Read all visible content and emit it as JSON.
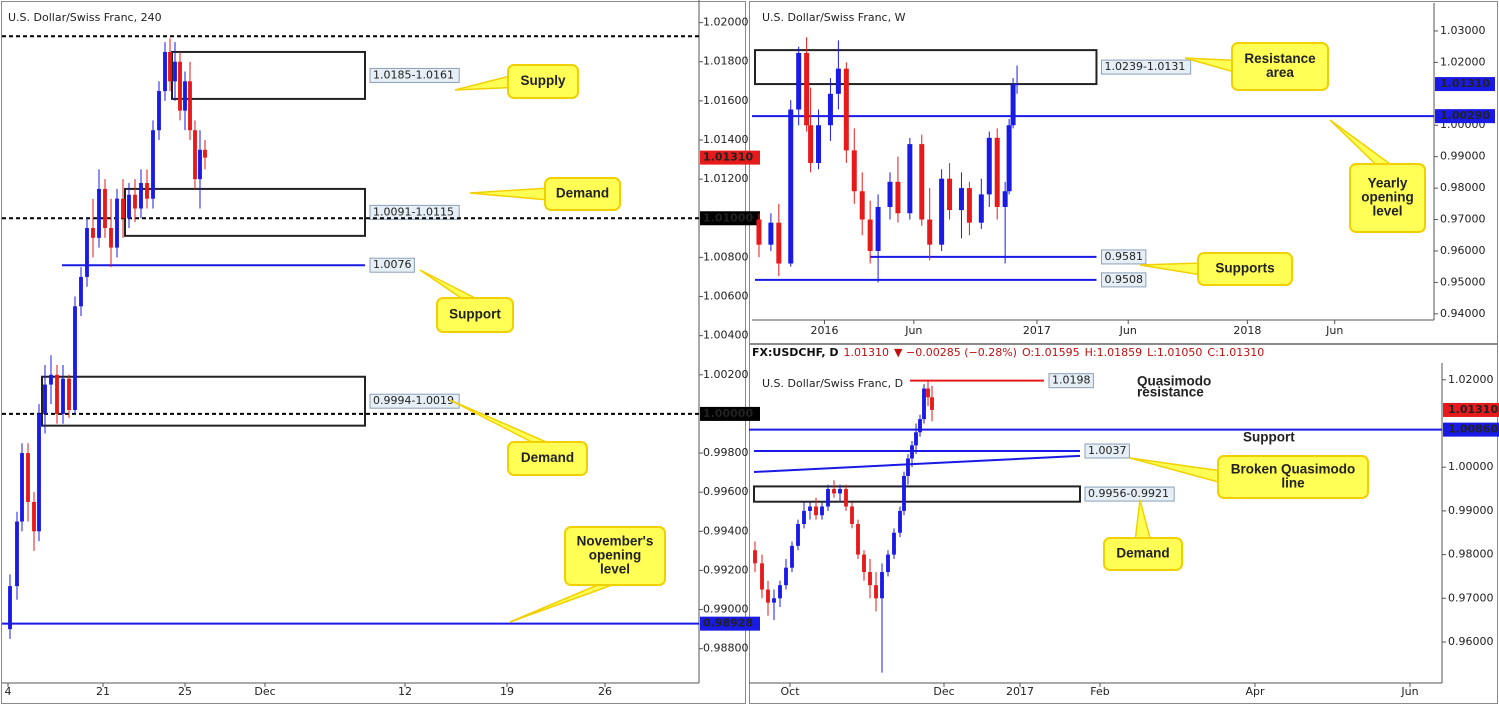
{
  "chart_data": [
    {
      "type": "candlestick",
      "title": "U.S. Dollar/Swiss Franc, 240",
      "x": [
        5,
        12,
        17,
        23,
        29,
        34,
        40,
        46,
        52,
        58,
        64,
        70,
        76,
        82,
        88,
        94,
        100,
        106,
        112,
        118,
        124,
        130,
        136,
        142,
        148,
        154,
        160,
        165,
        170,
        175,
        180,
        185,
        190,
        195,
        200
      ],
      "open": [
        0.989,
        0.9912,
        0.9945,
        0.998,
        0.9955,
        0.994,
        1.0,
        1.0015,
        1.002,
        1.0,
        1.0018,
        1.0002,
        1.0055,
        1.007,
        1.0095,
        1.009,
        1.0115,
        1.0095,
        1.0085,
        1.011,
        1.01,
        1.0112,
        1.0105,
        1.0118,
        1.011,
        1.0145,
        1.0165,
        1.0185,
        1.017,
        1.018,
        1.0155,
        1.017,
        1.0145,
        1.012,
        1.0135
      ],
      "high": [
        0.9918,
        0.995,
        0.9985,
        0.9985,
        0.996,
        1.0005,
        1.0025,
        1.003,
        1.0025,
        1.0025,
        1.002,
        1.006,
        1.0075,
        1.01,
        1.011,
        1.0125,
        1.012,
        1.011,
        1.0115,
        1.012,
        1.0118,
        1.012,
        1.0125,
        1.0125,
        1.015,
        1.017,
        1.019,
        1.0192,
        1.019,
        1.0185,
        1.0175,
        1.018,
        1.015,
        1.0145,
        1.014
      ],
      "low": [
        0.9885,
        0.9905,
        0.994,
        0.9945,
        0.993,
        0.9935,
        0.999,
        1.0005,
        0.9995,
        0.9995,
        0.9998,
        1.0,
        1.005,
        1.0065,
        1.008,
        1.0085,
        1.009,
        1.0075,
        1.008,
        1.009,
        1.0095,
        1.0098,
        1.01,
        1.0105,
        1.0105,
        1.014,
        1.016,
        1.0165,
        1.016,
        1.015,
        1.0145,
        1.014,
        1.0115,
        1.0105,
        1.0125
      ],
      "close": [
        0.9912,
        0.9945,
        0.998,
        0.9955,
        0.994,
        1.0,
        1.0015,
        1.002,
        1.0,
        1.0018,
        1.0002,
        1.0055,
        1.007,
        1.0095,
        1.009,
        1.0115,
        1.0095,
        1.0085,
        1.011,
        1.01,
        1.0112,
        1.0105,
        1.0118,
        1.011,
        1.0145,
        1.0165,
        1.0185,
        1.017,
        1.018,
        1.0155,
        1.017,
        1.0145,
        1.012,
        1.0135,
        1.0131
      ],
      "up_color": "#1a1ae6",
      "down_color": "#e61a1a",
      "xlim": [
        0,
        692
      ],
      "xticks": [
        {
          "value": 3,
          "label": "4"
        },
        {
          "value": 98,
          "label": "21"
        },
        {
          "value": 180,
          "label": "25"
        },
        {
          "value": 260,
          "label": "Dec"
        },
        {
          "value": 400,
          "label": "12"
        },
        {
          "value": 502,
          "label": "19"
        },
        {
          "value": 600,
          "label": "26"
        }
      ],
      "ylim": [
        0.9864,
        1.0209
      ],
      "yticks": [
        {
          "value": 1.02,
          "label": "1.02000"
        },
        {
          "value": 1.018,
          "label": "1.01800"
        },
        {
          "value": 1.016,
          "label": "1.01600"
        },
        {
          "value": 1.014,
          "label": "1.01400"
        },
        {
          "value": 1.012,
          "label": "1.01200"
        },
        {
          "value": 1.008,
          "label": "1.00800"
        },
        {
          "value": 1.006,
          "label": "1.00600"
        },
        {
          "value": 1.004,
          "label": "1.00400"
        },
        {
          "value": 1.002,
          "label": "1.00200"
        },
        {
          "value": 0.998,
          "label": "0.99800"
        },
        {
          "value": 0.996,
          "label": "0.99600"
        },
        {
          "value": 0.994,
          "label": "0.99400"
        },
        {
          "value": 0.992,
          "label": "0.99200"
        },
        {
          "value": 0.99,
          "label": "0.99000"
        },
        {
          "value": 0.988,
          "label": "0.98800"
        }
      ],
      "zones": [
        {
          "label": "1.0185-1.0161",
          "top": 1.0185,
          "bottom": 1.0161,
          "start": 167,
          "end": 360
        },
        {
          "label": "1.0091-1.0115",
          "top": 1.0115,
          "bottom": 1.0091,
          "start": 120,
          "end": 360
        },
        {
          "label": "0.9994-1.0019",
          "top": 1.0019,
          "bottom": 0.9994,
          "start": 37,
          "end": 360
        }
      ],
      "levels": [
        {
          "value": 1.0193,
          "color": "#000000",
          "style": "dashed"
        },
        {
          "value": 1.01,
          "color": "#000000",
          "style": "dashed"
        },
        {
          "value": 1.0,
          "color": "#000000",
          "style": "dashed"
        },
        {
          "value": 1.0076,
          "label": "1.0076",
          "color": "#1a1ae6",
          "style": "solid",
          "start": 57,
          "end": 360
        },
        {
          "value": 0.98928,
          "color": "#1a1ae6",
          "style": "solid"
        }
      ],
      "badges": [
        {
          "value": 1.0131,
          "label": "1.01310",
          "color": "#e61a1a"
        },
        {
          "value": 1.01,
          "label": "1.01000",
          "color": "#000000"
        },
        {
          "value": 1.0,
          "label": "1.00000",
          "color": "#000000"
        },
        {
          "value": 0.98928,
          "label": "0.98928",
          "color": "#1a1ae6"
        }
      ],
      "annotations": [
        {
          "lines": [
            "Supply"
          ]
        },
        {
          "lines": [
            "Demand"
          ]
        },
        {
          "lines": [
            "Support"
          ]
        },
        {
          "lines": [
            "Demand"
          ]
        },
        {
          "lines": [
            "November's",
            "opening",
            "level"
          ]
        }
      ]
    },
    {
      "type": "candlestick",
      "title": "U.S. Dollar/Swiss Franc, W",
      "x": [
        1,
        4,
        6,
        9,
        11,
        13,
        14,
        16,
        19,
        21,
        23,
        25,
        27,
        29,
        31,
        34,
        36,
        39,
        42,
        44,
        47,
        49,
        52,
        54,
        57,
        59,
        61,
        63,
        64,
        65,
        66
      ],
      "open": [
        0.97,
        0.962,
        0.969,
        0.956,
        1.005,
        1.023,
        1.0,
        0.988,
        1.0,
        1.01,
        1.018,
        0.992,
        0.979,
        0.97,
        0.96,
        0.974,
        0.982,
        0.972,
        0.994,
        0.97,
        0.962,
        0.983,
        0.973,
        0.98,
        0.969,
        0.978,
        0.996,
        0.974,
        0.979,
        1.0,
        1.013
      ],
      "high": [
        0.972,
        0.972,
        0.975,
        1.008,
        1.025,
        1.028,
        1.012,
        1.005,
        1.015,
        1.027,
        1.02,
        0.999,
        0.985,
        0.976,
        0.978,
        0.985,
        0.99,
        0.996,
        0.997,
        0.98,
        0.986,
        0.988,
        0.985,
        0.982,
        0.983,
        0.998,
        0.999,
        0.982,
        1.002,
        1.015,
        1.019
      ],
      "low": [
        0.958,
        0.96,
        0.952,
        0.955,
        1.0,
        0.998,
        0.985,
        0.986,
        0.995,
        1.005,
        0.988,
        0.975,
        0.965,
        0.956,
        0.95,
        0.97,
        0.969,
        0.97,
        0.968,
        0.957,
        0.96,
        0.97,
        0.964,
        0.965,
        0.967,
        0.974,
        0.97,
        0.956,
        0.978,
        0.999,
        1.01
      ],
      "close": [
        0.962,
        0.969,
        0.956,
        1.005,
        1.023,
        1.0,
        0.988,
        1.0,
        1.01,
        1.018,
        0.992,
        0.979,
        0.97,
        0.96,
        0.974,
        0.982,
        0.972,
        0.994,
        0.97,
        0.962,
        0.983,
        0.973,
        0.98,
        0.969,
        0.978,
        0.996,
        0.974,
        0.979,
        1.0,
        1.013,
        1.0131
      ],
      "up_color": "#1a1ae6",
      "down_color": "#e61a1a",
      "xlim": [
        0,
        170
      ],
      "xticks": [
        {
          "value": 17.5,
          "label": "2016"
        },
        {
          "value": 40,
          "label": "Jun"
        },
        {
          "value": 71,
          "label": "2017"
        },
        {
          "value": 94,
          "label": "Jun"
        },
        {
          "value": 124,
          "label": "2018"
        },
        {
          "value": 146,
          "label": "Jun"
        }
      ],
      "ylim": [
        0.9374,
        1.0373
      ],
      "yticks": [
        {
          "value": 1.03,
          "label": "1.03000"
        },
        {
          "value": 1.02,
          "label": "1.02000"
        },
        {
          "value": 1.0,
          "label": "1.00000"
        },
        {
          "value": 0.99,
          "label": "0.99000"
        },
        {
          "value": 0.98,
          "label": "0.98000"
        },
        {
          "value": 0.97,
          "label": "0.97000"
        },
        {
          "value": 0.96,
          "label": "0.96000"
        },
        {
          "value": 0.95,
          "label": "0.95000"
        },
        {
          "value": 0.94,
          "label": "0.94000"
        }
      ],
      "zones": [
        {
          "label": "1.0239-1.0131",
          "top": 1.0239,
          "bottom": 1.0131,
          "start": 0,
          "end": 86
        }
      ],
      "levels": [
        {
          "value": 1.0029,
          "color": "#1a1ae6",
          "style": "solid"
        },
        {
          "value": 0.9581,
          "label": "0.9581",
          "color": "#1a1ae6",
          "style": "solid",
          "start": 29,
          "end": 86
        },
        {
          "value": 0.9508,
          "label": "0.9508",
          "color": "#1a1ae6",
          "style": "solid",
          "start": 0,
          "end": 86
        }
      ],
      "badges": [
        {
          "value": 1.0131,
          "label": "1.01310",
          "color": "#1a1ae6"
        },
        {
          "value": 1.0029,
          "label": "1.00290",
          "color": "#1a1ae6"
        }
      ],
      "annotations": [
        {
          "lines": [
            "Resistance",
            "area"
          ]
        },
        {
          "lines": [
            "Yearly",
            "opening",
            "level"
          ]
        },
        {
          "lines": [
            "Supports"
          ]
        }
      ]
    },
    {
      "type": "candlestick",
      "title": "U.S. Dollar/Swiss Franc, D",
      "header": [
        "FX:USDCHF, D",
        "1.01310",
        "▼ −0.00285 (−0.28%)",
        "O:1.01595",
        "H:1.01859",
        "L:1.01050",
        "C:1.01310"
      ],
      "x": [
        1.5,
        5,
        8,
        11,
        14,
        17,
        20,
        23,
        26,
        29,
        32,
        35,
        38,
        41,
        44,
        47,
        50,
        53,
        56,
        59,
        62,
        65,
        68,
        71,
        74,
        76,
        78,
        80,
        82,
        84,
        86,
        88,
        90
      ],
      "open": [
        0.981,
        0.978,
        0.972,
        0.969,
        0.97,
        0.973,
        0.977,
        0.982,
        0.987,
        0.99,
        0.991,
        0.989,
        0.991,
        0.995,
        0.994,
        0.995,
        0.991,
        0.987,
        0.98,
        0.976,
        0.973,
        0.97,
        0.976,
        0.98,
        0.985,
        0.99,
        0.998,
        1.002,
        1.005,
        1.008,
        1.011,
        1.018,
        1.016
      ],
      "high": [
        0.983,
        0.98,
        0.974,
        0.972,
        0.974,
        0.979,
        0.983,
        0.988,
        0.992,
        0.992,
        0.993,
        0.992,
        0.996,
        0.997,
        0.996,
        0.996,
        0.992,
        0.988,
        0.981,
        0.979,
        0.976,
        0.978,
        0.981,
        0.986,
        0.991,
        0.999,
        1.003,
        1.006,
        1.01,
        1.012,
        1.019,
        1.0198,
        1.0186
      ],
      "low": [
        0.976,
        0.97,
        0.966,
        0.965,
        0.968,
        0.972,
        0.976,
        0.981,
        0.986,
        0.988,
        0.988,
        0.988,
        0.99,
        0.993,
        0.992,
        0.99,
        0.986,
        0.979,
        0.974,
        0.97,
        0.967,
        0.953,
        0.975,
        0.979,
        0.984,
        0.989,
        0.996,
        1.0,
        1.003,
        1.007,
        1.01,
        1.014,
        1.0105
      ],
      "close": [
        0.978,
        0.972,
        0.969,
        0.97,
        0.973,
        0.977,
        0.982,
        0.987,
        0.99,
        0.991,
        0.989,
        0.991,
        0.995,
        0.994,
        0.995,
        0.991,
        0.987,
        0.98,
        0.976,
        0.973,
        0.97,
        0.976,
        0.98,
        0.985,
        0.99,
        0.998,
        1.002,
        1.005,
        1.008,
        1.011,
        1.018,
        1.016,
        1.0131
      ],
      "up_color": "#1a1ae6",
      "down_color": "#e61a1a",
      "xlim": [
        0,
        344
      ],
      "xticks": [
        {
          "value": 19,
          "label": "Oct"
        },
        {
          "value": 96,
          "label": "Dec"
        },
        {
          "value": 134,
          "label": "2017"
        },
        {
          "value": 174,
          "label": "Feb"
        },
        {
          "value": 251.5,
          "label": "Apr"
        },
        {
          "value": 329,
          "label": "Jun"
        }
      ],
      "ylim": [
        0.9513,
        1.0227
      ],
      "yticks": [
        {
          "value": 1.02,
          "label": "1.02000"
        },
        {
          "value": 1.0,
          "label": "1.00000"
        },
        {
          "value": 0.99,
          "label": "0.99000"
        },
        {
          "value": 0.98,
          "label": "0.98000"
        },
        {
          "value": 0.97,
          "label": "0.97000"
        },
        {
          "value": 0.96,
          "label": "0.96000"
        }
      ],
      "zones": [
        {
          "label": "0.9956-0.9921",
          "top": 0.9956,
          "bottom": 0.9921,
          "start": 1,
          "end": 164
        }
      ],
      "levels": [
        {
          "value": 1.0198,
          "label": "1.0198",
          "color": "#e61a1a",
          "style": "solid",
          "start": 79,
          "end": 146
        },
        {
          "value": 1.0086,
          "color": "#1a1ae6",
          "style": "solid"
        },
        {
          "value": 1.0037,
          "label": "1.0037",
          "color": "#1a1ae6",
          "style": "solid",
          "start": 1,
          "end": 164
        }
      ],
      "trendline": {
        "x": [
          1,
          164
        ],
        "values": [
          0.9989,
          1.0026
        ],
        "color": "#1a1ae6"
      },
      "badges": [
        {
          "value": 1.0131,
          "label": "1.01310",
          "color": "#e61a1a"
        },
        {
          "value": 1.0086,
          "label": "1.00860",
          "color": "#1a1ae6"
        }
      ],
      "annotations": [
        {
          "lines": [
            "Quasimodo",
            "resistance"
          ]
        },
        {
          "lines": [
            "Support"
          ]
        },
        {
          "lines": [
            "Broken Quasimodo",
            "line"
          ]
        },
        {
          "lines": [
            "Demand"
          ]
        }
      ]
    }
  ]
}
